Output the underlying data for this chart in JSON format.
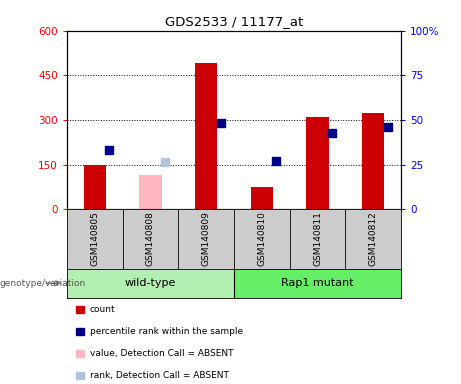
{
  "title": "GDS2533 / 11177_at",
  "samples": [
    "GSM140805",
    "GSM140808",
    "GSM140809",
    "GSM140810",
    "GSM140811",
    "GSM140812"
  ],
  "bar_values": [
    150,
    null,
    490,
    75,
    310,
    325
  ],
  "bar_absent_values": [
    null,
    115,
    null,
    null,
    null,
    null
  ],
  "bar_color_present": "#cc0000",
  "bar_color_absent": "#ffb6c1",
  "dot_rank_present": [
    200,
    null,
    290,
    163,
    255,
    275
  ],
  "dot_rank_absent": [
    null,
    158,
    null,
    null,
    null,
    null
  ],
  "dot_color_present": "#00008b",
  "dot_color_absent": "#b0c4de",
  "ylim_left": [
    0,
    600
  ],
  "ylim_right": [
    0,
    100
  ],
  "yticks_left": [
    0,
    150,
    300,
    450,
    600
  ],
  "yticks_right": [
    0,
    25,
    50,
    75,
    100
  ],
  "ytick_labels_left": [
    "0",
    "150",
    "300",
    "450",
    "600"
  ],
  "ytick_labels_right": [
    "0",
    "25",
    "50",
    "75",
    "100%"
  ],
  "hline_values": [
    150,
    300,
    450
  ],
  "wildtype_label": "wild-type",
  "mutant_label": "Rap1 mutant",
  "genotype_label": "genotype/variation",
  "wildtype_color": "#b2f0b2",
  "mutant_color": "#66ee66",
  "legend_items": [
    {
      "label": "count",
      "color": "#cc0000"
    },
    {
      "label": "percentile rank within the sample",
      "color": "#00008b"
    },
    {
      "label": "value, Detection Call = ABSENT",
      "color": "#ffb6c1"
    },
    {
      "label": "rank, Detection Call = ABSENT",
      "color": "#b0c4de"
    }
  ],
  "bar_width": 0.4,
  "dot_size": 35,
  "sample_box_color": "#cccccc",
  "plot_area_color": "#ffffff"
}
